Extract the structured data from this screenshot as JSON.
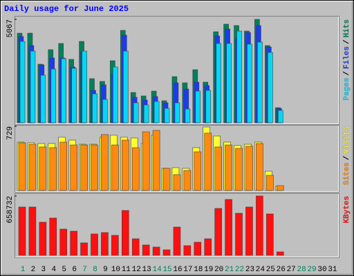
{
  "chart_data": [
    {
      "type": "bar",
      "title": "Daily usage for June 2025",
      "ylim": [
        0,
        5067
      ],
      "yticks": [
        5067
      ],
      "legend_separator": "/",
      "series": [
        {
          "name": "Hits",
          "color": "#00805c",
          "values": [
            4391,
            4391,
            2871,
            3581,
            3885,
            3108,
            3986,
            2162,
            2027,
            3040,
            4527,
            1486,
            1317,
            1554,
            1081,
            2263,
            1959,
            2601,
            1993,
            4459,
            4831,
            4763,
            4493,
            5067,
            3783,
            743,
            0,
            0,
            0,
            0,
            0
          ]
        },
        {
          "name": "Files",
          "color": "#1a3cf0",
          "values": [
            4223,
            3783,
            2838,
            3175,
            3175,
            2736,
            3479,
            1588,
            1858,
            2398,
            4290,
            1250,
            1115,
            1284,
            980,
            1959,
            1655,
            1993,
            1824,
            4256,
            4594,
            4155,
            4425,
            4763,
            3716,
            709,
            0,
            0,
            0,
            0,
            0
          ]
        },
        {
          "name": "Pages",
          "color": "#00d8f8",
          "values": [
            3986,
            3513,
            2331,
            2635,
            3142,
            2669,
            3513,
            1419,
            1148,
            2736,
            3513,
            980,
            878,
            1047,
            709,
            980,
            676,
            1554,
            1588,
            3885,
            3885,
            4493,
            3851,
            3952,
            3446,
            608,
            0,
            0,
            0,
            0,
            0
          ]
        }
      ]
    },
    {
      "type": "bar",
      "ylim": [
        0,
        729
      ],
      "yticks": [
        729
      ],
      "legend_separator": "/",
      "series": [
        {
          "name": "Visits",
          "color": "#ffff30",
          "values": [
            549,
            541,
            533,
            533,
            604,
            572,
            525,
            525,
            604,
            627,
            604,
            596,
            533,
            627,
            251,
            259,
            251,
            486,
            721,
            619,
            549,
            510,
            525,
            549,
            219,
            47,
            0,
            0,
            0,
            0,
            0
          ]
        },
        {
          "name": "Sites",
          "color": "#ff8a10",
          "values": [
            541,
            525,
            494,
            486,
            549,
            517,
            517,
            517,
            635,
            517,
            572,
            486,
            666,
            682,
            251,
            180,
            227,
            439,
            651,
            494,
            517,
            478,
            502,
            533,
            172,
            55,
            0,
            0,
            0,
            0,
            0
          ]
        }
      ]
    },
    {
      "type": "bar",
      "ylim": [
        0,
        658732
      ],
      "yticks": [
        658732
      ],
      "series": [
        {
          "name": "KBytes",
          "color": "#ff1010",
          "values": [
            536178,
            536178,
            367664,
            413622,
            291065,
            268089,
            137875,
            237450,
            252770,
            222131,
            497879,
            183832,
            114895,
            91916,
            61277,
            314047,
            107236,
            145534,
            183832,
            520859,
            620432,
            467240,
            536178,
            658732,
            459581,
            38298,
            0,
            0,
            0,
            0,
            0
          ]
        }
      ],
      "categories": [
        "1",
        "2",
        "3",
        "4",
        "5",
        "6",
        "7",
        "8",
        "9",
        "10",
        "11",
        "12",
        "13",
        "14",
        "15",
        "16",
        "17",
        "18",
        "19",
        "20",
        "21",
        "22",
        "23",
        "24",
        "25",
        "26",
        "27",
        "28",
        "29",
        "30",
        "31"
      ],
      "category_colors": [
        "#00805c",
        "#000000",
        "#000000",
        "#000000",
        "#000000",
        "#000000",
        "#00805c",
        "#00805c",
        "#000000",
        "#000000",
        "#000000",
        "#000000",
        "#000000",
        "#00805c",
        "#00805c",
        "#000000",
        "#000000",
        "#000000",
        "#000000",
        "#000000",
        "#00805c",
        "#00805c",
        "#000000",
        "#000000",
        "#000000",
        "#000000",
        "#000000",
        "#00805c",
        "#00805c",
        "#000000",
        "#000000"
      ]
    }
  ]
}
